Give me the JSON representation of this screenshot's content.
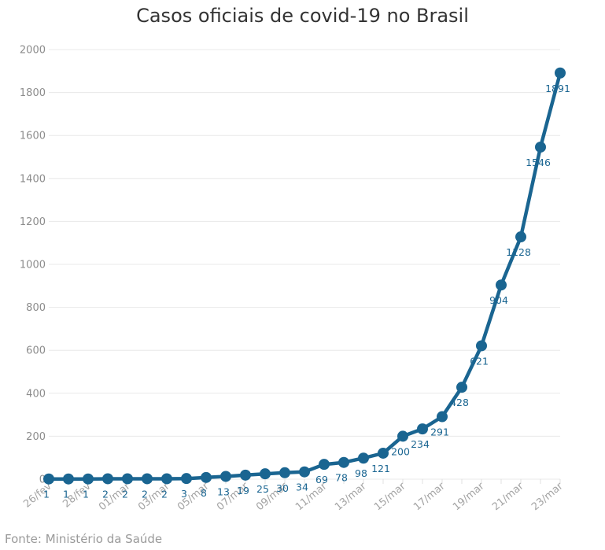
{
  "title": "Casos oficiais de covid-19 no Brasil",
  "source": "Fonte: Ministério da Saúde",
  "line_color": "#1a6591",
  "chart_data": {
    "type": "line",
    "title": "Casos oficiais de covid-19 no Brasil",
    "xlabel": "",
    "ylabel": "",
    "ylim": [
      0,
      2000
    ],
    "yticks": [
      0,
      200,
      400,
      600,
      800,
      1000,
      1200,
      1400,
      1600,
      1800,
      2000
    ],
    "grid": true,
    "legend": "none",
    "x": [
      "26/fev",
      "27/fev",
      "28/fev",
      "29/fev",
      "01/mar",
      "02/mar",
      "03/mar",
      "04/mar",
      "05/mar",
      "06/mar",
      "07/mar",
      "08/mar",
      "09/mar",
      "10/mar",
      "11/mar",
      "12/mar",
      "13/mar",
      "14/mar",
      "15/mar",
      "16/mar",
      "17/mar",
      "18/mar",
      "19/mar",
      "20/mar",
      "21/mar",
      "22/mar",
      "23/mar"
    ],
    "x_tick_labels": [
      "26/fev",
      "",
      "28/fev",
      "",
      "01/mar",
      "",
      "03/mar",
      "",
      "05/mar",
      "",
      "07/mar",
      "",
      "09/mar",
      "",
      "11/mar",
      "",
      "13/mar",
      "",
      "15/mar",
      "",
      "17/mar",
      "",
      "19/mar",
      "",
      "21/mar",
      "",
      "23/mar"
    ],
    "values": [
      1,
      1,
      1,
      2,
      2,
      2,
      2,
      3,
      8,
      13,
      19,
      25,
      30,
      34,
      69,
      78,
      98,
      121,
      200,
      234,
      291,
      428,
      621,
      904,
      1128,
      1546,
      1891
    ]
  }
}
